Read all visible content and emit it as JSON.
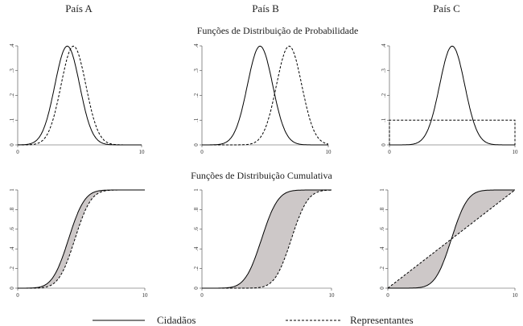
{
  "columns": [
    "País A",
    "País B",
    "País C"
  ],
  "rows": [
    "Funções de Distribuição de Probabilidade",
    "Funções de Distribuição Cumulativa"
  ],
  "legend": {
    "solid_label": "Cidadãos",
    "dashed_label": "Representantes"
  },
  "colors": {
    "fill": "#cdc8c8",
    "line": "#000000"
  },
  "chart_data": [
    {
      "type": "line",
      "panel": "País A — PDF",
      "x_ticks": [
        "0",
        "10"
      ],
      "y_ticks": [
        "0",
        ".1",
        ".2",
        ".3",
        ".4"
      ],
      "xlim": [
        0,
        10
      ],
      "ylim": [
        0,
        0.4
      ],
      "series": [
        {
          "name": "Cidadãos",
          "style": "solid",
          "dist": "normal",
          "mean": 4.0,
          "sd": 1.0
        },
        {
          "name": "Representantes",
          "style": "dashed",
          "dist": "normal",
          "mean": 4.5,
          "sd": 1.0
        }
      ]
    },
    {
      "type": "line",
      "panel": "País B — PDF",
      "x_ticks": [
        "0",
        "10"
      ],
      "y_ticks": [
        "0",
        ".1",
        ".2",
        ".3",
        ".4"
      ],
      "xlim": [
        0,
        10
      ],
      "ylim": [
        0,
        0.4
      ],
      "series": [
        {
          "name": "Cidadãos",
          "style": "solid",
          "dist": "normal",
          "mean": 4.6,
          "sd": 1.0
        },
        {
          "name": "Representantes",
          "style": "dashed",
          "dist": "normal",
          "mean": 6.9,
          "sd": 1.0
        }
      ]
    },
    {
      "type": "line",
      "panel": "País C — PDF",
      "x_ticks": [
        "0",
        "10"
      ],
      "y_ticks": [
        "0",
        ".1",
        ".2",
        ".3",
        ".4"
      ],
      "xlim": [
        0,
        10
      ],
      "ylim": [
        0,
        0.4
      ],
      "series": [
        {
          "name": "Cidadãos",
          "style": "solid",
          "dist": "normal",
          "mean": 5.0,
          "sd": 1.0
        },
        {
          "name": "Representantes",
          "style": "dashed",
          "dist": "uniform",
          "low": 0,
          "high": 10,
          "density": 0.1
        }
      ]
    },
    {
      "type": "area",
      "panel": "País A — CDF",
      "x_ticks": [
        "0",
        "10"
      ],
      "y_ticks": [
        "0",
        ".2",
        ".4",
        ".6",
        ".8",
        "1"
      ],
      "xlim": [
        0,
        10
      ],
      "ylim": [
        0,
        1
      ],
      "series": [
        {
          "name": "Cidadãos",
          "style": "solid",
          "dist": "normal",
          "mean": 4.0,
          "sd": 1.0
        },
        {
          "name": "Representantes",
          "style": "dashed",
          "dist": "normal",
          "mean": 4.5,
          "sd": 1.0
        }
      ]
    },
    {
      "type": "area",
      "panel": "País B — CDF",
      "x_ticks": [
        "0",
        "10"
      ],
      "y_ticks": [
        "0",
        ".2",
        ".4",
        ".6",
        ".8",
        "1"
      ],
      "xlim": [
        0,
        10
      ],
      "ylim": [
        0,
        1
      ],
      "series": [
        {
          "name": "Cidadãos",
          "style": "solid",
          "dist": "normal",
          "mean": 4.6,
          "sd": 1.0
        },
        {
          "name": "Representantes",
          "style": "dashed",
          "dist": "normal",
          "mean": 6.9,
          "sd": 1.0
        }
      ]
    },
    {
      "type": "area",
      "panel": "País C — CDF",
      "x_ticks": [
        "0",
        "10"
      ],
      "y_ticks": [
        "0",
        ".2",
        ".4",
        ".6",
        ".8",
        "1"
      ],
      "xlim": [
        0,
        10
      ],
      "ylim": [
        0,
        1
      ],
      "series": [
        {
          "name": "Cidadãos",
          "style": "solid",
          "dist": "normal",
          "mean": 5.0,
          "sd": 1.0
        },
        {
          "name": "Representantes",
          "style": "dashed",
          "dist": "uniform",
          "low": 0,
          "high": 10
        }
      ]
    }
  ]
}
